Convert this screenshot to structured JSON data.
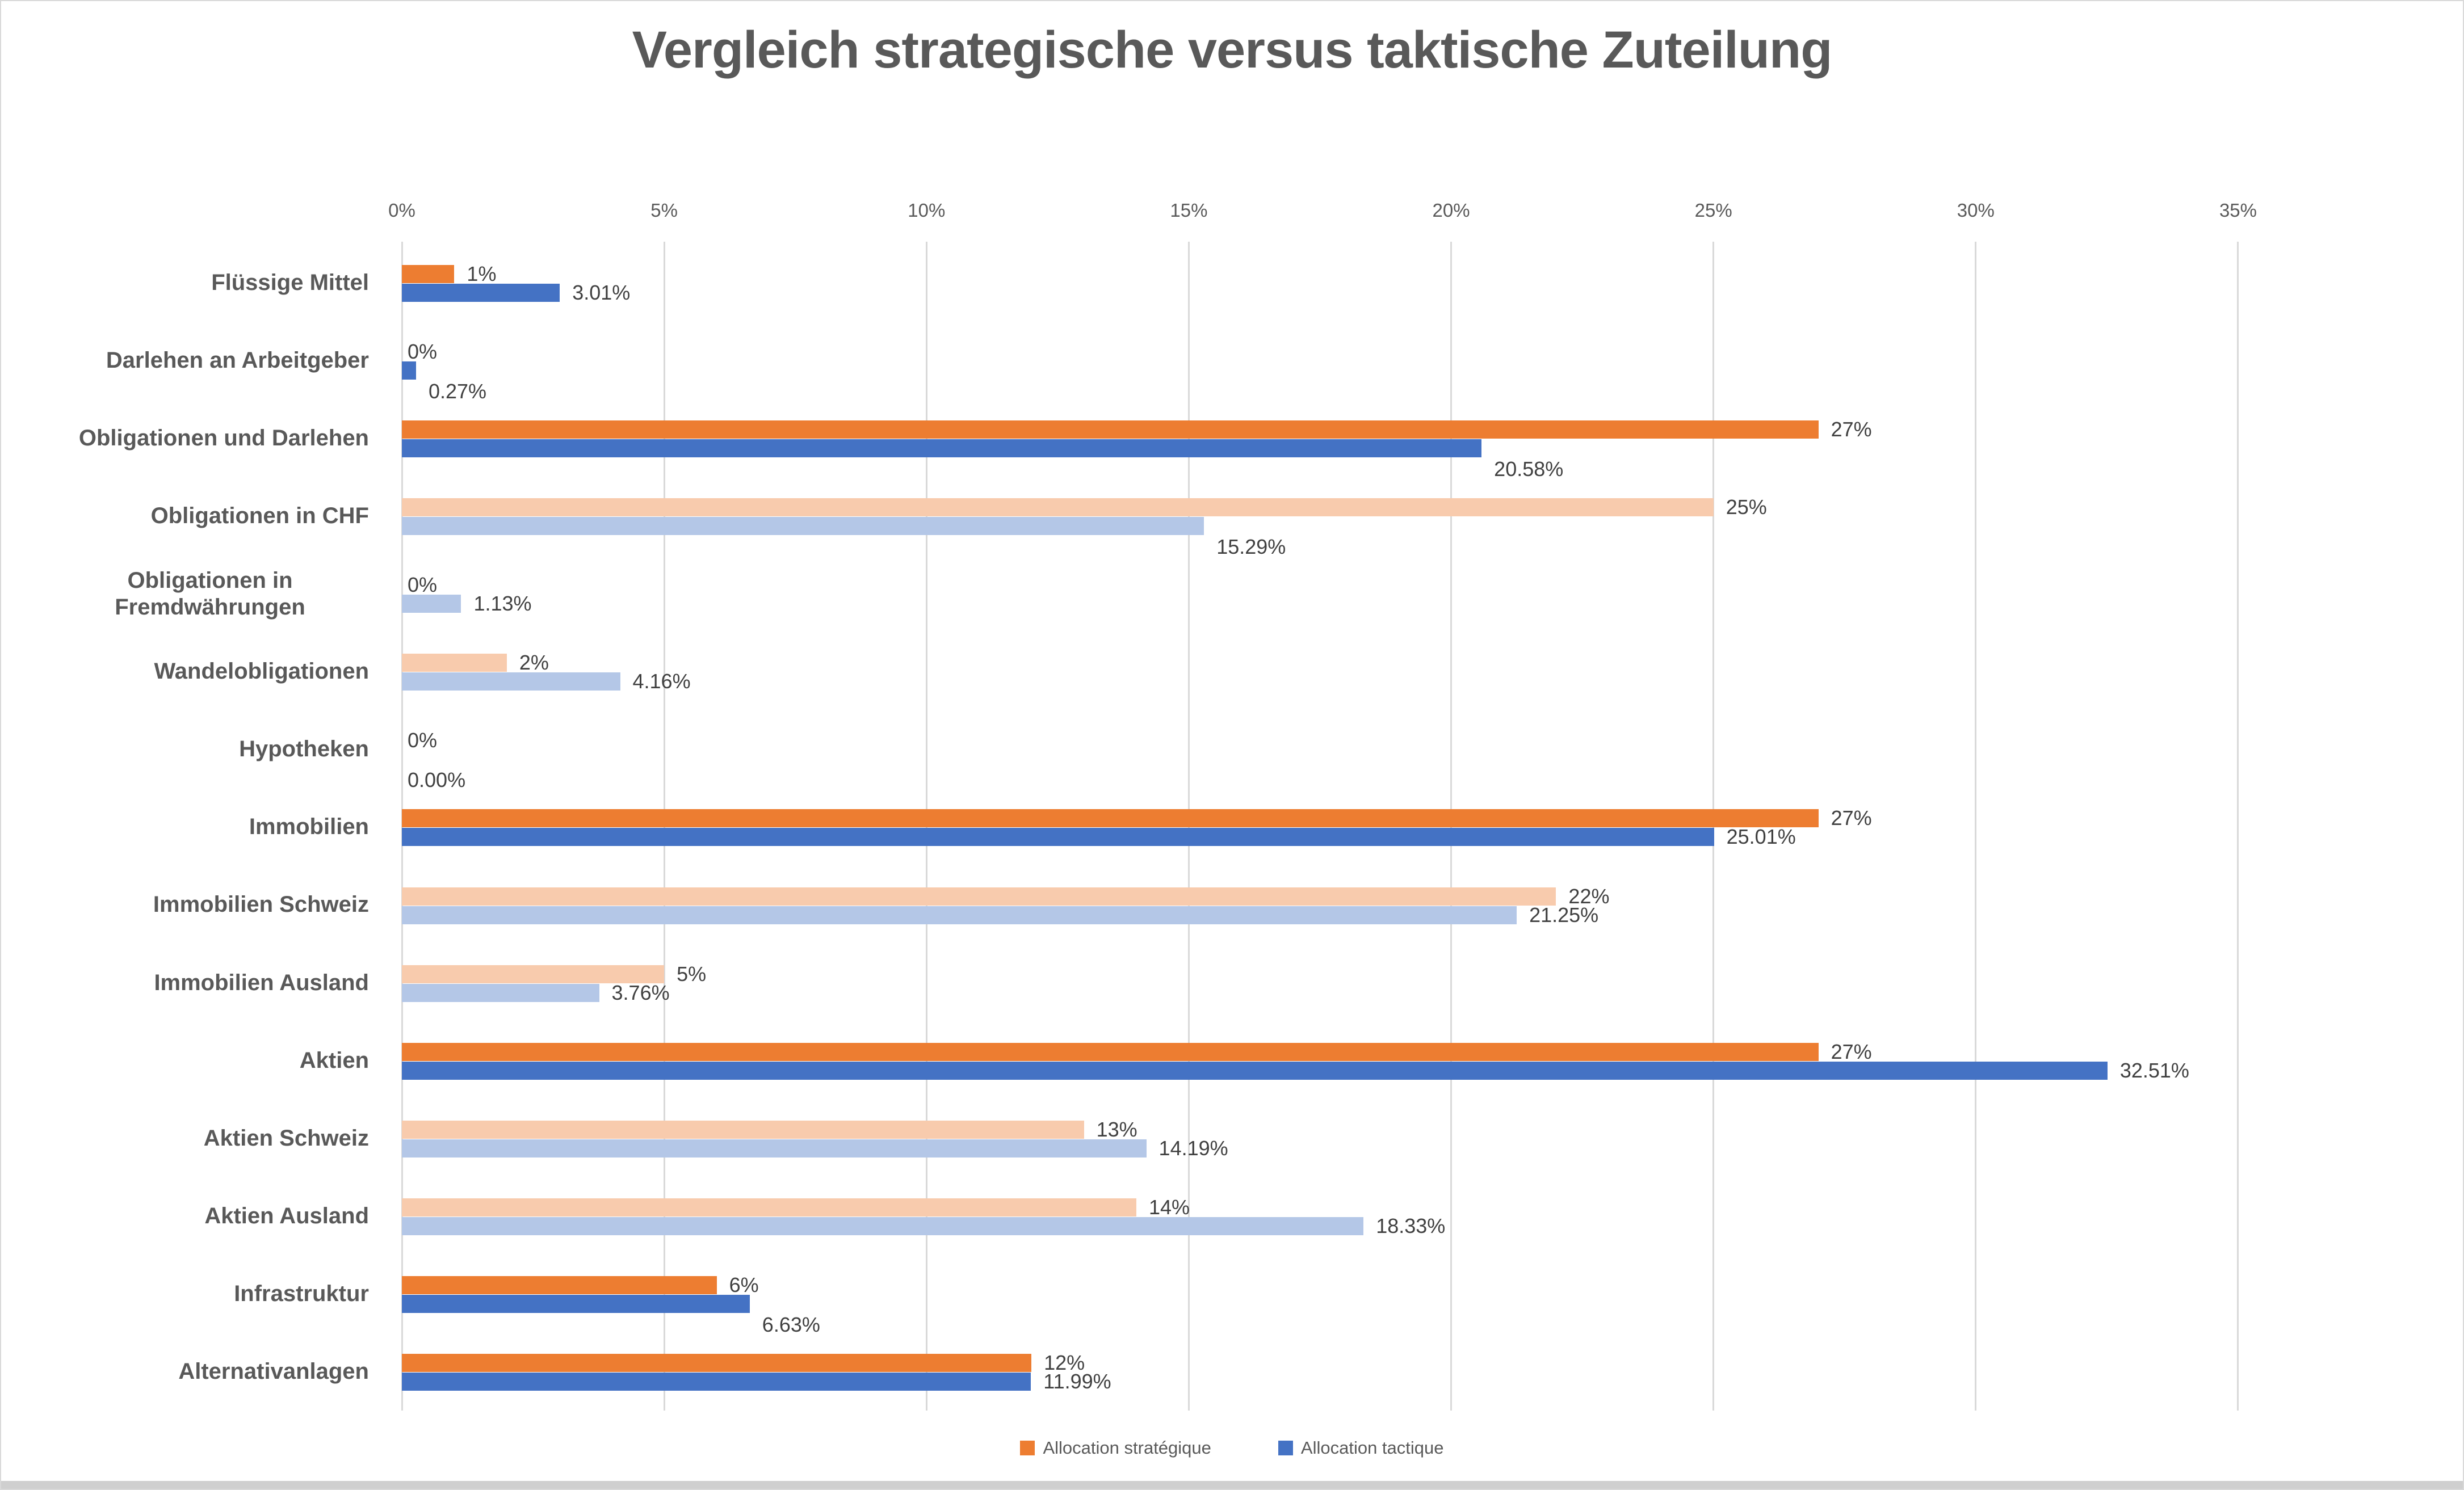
{
  "chart_data": {
    "type": "bar",
    "orientation": "horizontal",
    "title": "Vergleich strategische versus taktische Zuteilung",
    "xlabel": "",
    "ylabel": "",
    "x_axis": {
      "position": "top",
      "min": 0,
      "max": 35,
      "unit": "%",
      "ticks": [
        "0%",
        "5%",
        "10%",
        "15%",
        "20%",
        "25%",
        "30%",
        "35%"
      ],
      "grid": true
    },
    "legend": {
      "position": "bottom",
      "entries": [
        {
          "label": "Allocation stratégique",
          "color": "#ED7D31"
        },
        {
          "label": "Allocation tactique",
          "color": "#4472C4"
        }
      ]
    },
    "series": [
      {
        "name": "Allocation stratégique",
        "color_main": "#ED7D31",
        "color_sub": "#F8CBAD"
      },
      {
        "name": "Allocation tactique",
        "color_main": "#4472C4",
        "color_sub": "#B4C7E7"
      }
    ],
    "colors": {
      "strategic_dark": "#ED7D31",
      "strategic_light": "#F8CBAD",
      "tactic_dark": "#4472C4",
      "tactic_light": "#B4C7E7",
      "gridline": "#D9D9D9",
      "text": "#595959",
      "value_text": "#404040"
    },
    "rows": [
      {
        "category": "Flüssige Mittel",
        "strategic": 1,
        "tactic": 3.01,
        "s_label": "1%",
        "t_label": "3.01%",
        "tone": "dark",
        "t_below": false
      },
      {
        "category": "Darlehen an Arbeitgeber",
        "strategic": 0,
        "tactic": 0.27,
        "s_label": "0%",
        "t_label": "0.27%",
        "tone": "dark",
        "t_below": true
      },
      {
        "category": "Obligationen und Darlehen",
        "strategic": 27,
        "tactic": 20.58,
        "s_label": "27%",
        "t_label": "20.58%",
        "tone": "dark",
        "t_below": true
      },
      {
        "category": "Obligationen in CHF",
        "strategic": 25,
        "tactic": 15.29,
        "s_label": "25%",
        "t_label": "15.29%",
        "tone": "light",
        "t_below": true
      },
      {
        "category": "Obligationen in Fremdwährungen",
        "strategic": 0,
        "tactic": 1.13,
        "s_label": "0%",
        "t_label": "1.13%",
        "tone": "light",
        "t_below": false
      },
      {
        "category": "Wandelobligationen",
        "strategic": 2,
        "tactic": 4.16,
        "s_label": "2%",
        "t_label": "4.16%",
        "tone": "light",
        "t_below": false
      },
      {
        "category": "Hypotheken",
        "strategic": 0,
        "tactic": 0,
        "s_label": "0%",
        "t_label": "0.00%",
        "tone": "light",
        "t_below": true
      },
      {
        "category": "Immobilien",
        "strategic": 27,
        "tactic": 25.01,
        "s_label": "27%",
        "t_label": "25.01%",
        "tone": "dark",
        "t_below": false
      },
      {
        "category": "Immobilien Schweiz",
        "strategic": 22,
        "tactic": 21.25,
        "s_label": "22%",
        "t_label": "21.25%",
        "tone": "light",
        "t_below": false
      },
      {
        "category": "Immobilien Ausland",
        "strategic": 5,
        "tactic": 3.76,
        "s_label": "5%",
        "t_label": "3.76%",
        "tone": "light",
        "t_below": false
      },
      {
        "category": "Aktien",
        "strategic": 27,
        "tactic": 32.51,
        "s_label": "27%",
        "t_label": "32.51%",
        "tone": "dark",
        "t_below": false
      },
      {
        "category": "Aktien Schweiz",
        "strategic": 13,
        "tactic": 14.19,
        "s_label": "13%",
        "t_label": "14.19%",
        "tone": "light",
        "t_below": false
      },
      {
        "category": "Aktien Ausland",
        "strategic": 14,
        "tactic": 18.33,
        "s_label": "14%",
        "t_label": "18.33%",
        "tone": "light",
        "t_below": false
      },
      {
        "category": "Infrastruktur",
        "strategic": 6,
        "tactic": 6.63,
        "s_label": "6%",
        "t_label": "6.63%",
        "tone": "dark",
        "t_below": true
      },
      {
        "category": "Alternativanlagen",
        "strategic": 12,
        "tactic": 11.99,
        "s_label": "12%",
        "t_label": "11.99%",
        "tone": "dark",
        "t_below": false
      }
    ]
  }
}
